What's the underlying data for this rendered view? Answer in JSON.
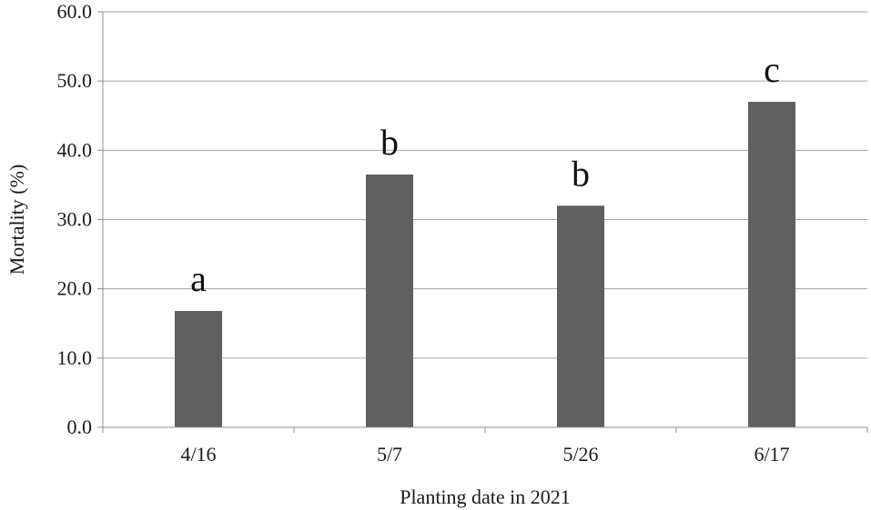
{
  "chart_data": {
    "type": "bar",
    "categories": [
      "4/16",
      "5/7",
      "5/26",
      "6/17"
    ],
    "values": [
      16.8,
      36.5,
      32.0,
      47.0
    ],
    "annotations": [
      "a",
      "b",
      "b",
      "c"
    ],
    "title": "",
    "xlabel": "Planting date in 2021",
    "ylabel": "Mortality (%)",
    "ylim": [
      0,
      60
    ],
    "yticks": [
      "0.0",
      "10.0",
      "20.0",
      "30.0",
      "40.0",
      "50.0",
      "60.0"
    ],
    "grid": true,
    "legend": "none",
    "bar_color": "#606060"
  }
}
